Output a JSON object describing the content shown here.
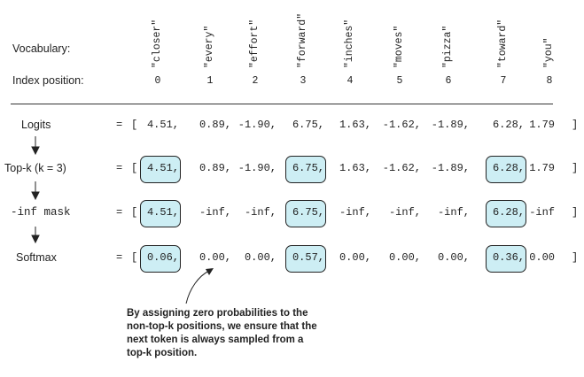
{
  "header": {
    "vocab_label": "Vocabulary:",
    "index_label": "Index position:"
  },
  "vocabulary": [
    "\"closer\"",
    "\"every\"",
    "\"effort\"",
    "\"forward\"",
    "\"inches\"",
    "\"moves\"",
    "\"pizza\"",
    "\"toward\"",
    "\"you\""
  ],
  "indices": [
    "0",
    "1",
    "2",
    "3",
    "4",
    "5",
    "6",
    "7",
    "8"
  ],
  "rows": [
    {
      "label": "Logits",
      "label_font": "sans",
      "values": [
        "4.51,",
        "0.89,",
        "-1.90,",
        "6.75,",
        "1.63,",
        "-1.62,",
        "-1.89,",
        "6.28,",
        "1.79"
      ],
      "highlight": []
    },
    {
      "label": "Top-k (k = 3)",
      "label_font": "sans",
      "values": [
        "4.51,",
        "0.89,",
        "-1.90,",
        "6.75,",
        "1.63,",
        "-1.62,",
        "-1.89,",
        "6.28,",
        "1.79"
      ],
      "highlight": [
        0,
        3,
        7
      ]
    },
    {
      "label": "-inf mask",
      "label_font": "mono",
      "values": [
        "4.51,",
        "-inf,",
        "-inf,",
        "6.75,",
        "-inf,",
        "-inf,",
        "-inf,",
        "6.28,",
        "-inf"
      ],
      "highlight": [
        0,
        3,
        7
      ]
    },
    {
      "label": "Softmax",
      "label_font": "sans",
      "values": [
        "0.06,",
        "0.00,",
        "0.00,",
        "0.57,",
        "0.00,",
        "0.00,",
        "0.00,",
        "0.36,",
        "0.00"
      ],
      "highlight": [
        0,
        3,
        7
      ]
    }
  ],
  "equals": "=",
  "open_bracket": "[",
  "close_bracket": "]",
  "annotation": "By assigning zero probabilities to the non-top-k positions, we ensure that the next token is always sampled from a top-k position."
}
